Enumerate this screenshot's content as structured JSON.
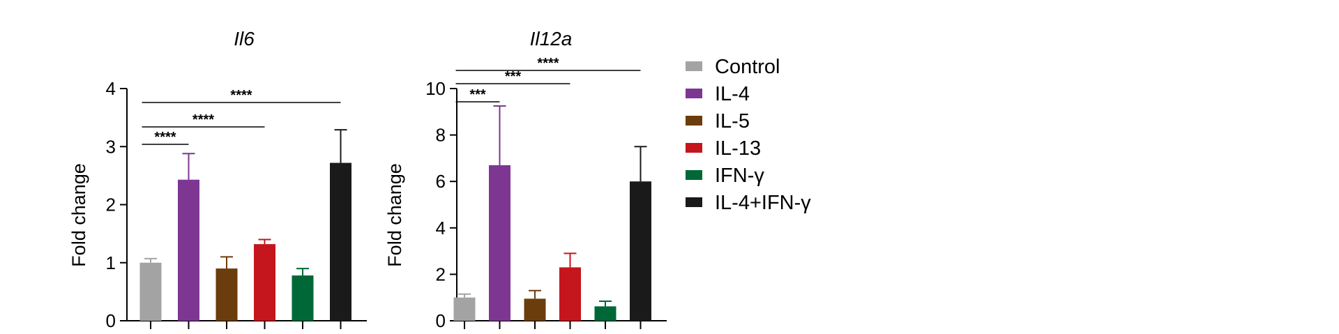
{
  "legend": {
    "placement": "right",
    "items": [
      {
        "label": "Control",
        "color": "#a3a3a3"
      },
      {
        "label": "IL-4",
        "color": "#7d3792"
      },
      {
        "label": "IL-5",
        "color": "#6b3d0c"
      },
      {
        "label": "IL-13",
        "color": "#c4161c"
      },
      {
        "label": "IFN-γ",
        "color": "#006837"
      },
      {
        "label": "IL-4+IFN-γ",
        "color": "#1a1a1a"
      }
    ]
  },
  "chart_data": [
    {
      "type": "bar",
      "title": "Il6",
      "ylabel": "Fold change",
      "ylim": [
        0,
        4
      ],
      "yticks": [
        0,
        1,
        2,
        3,
        4
      ],
      "categories": [
        "Control",
        "IL-4",
        "IL-5",
        "IL-13",
        "IFN-γ",
        "IL-4+IFN-γ"
      ],
      "values": [
        1.0,
        2.43,
        0.9,
        1.32,
        0.78,
        2.72
      ],
      "errors": [
        0.07,
        0.45,
        0.2,
        0.08,
        0.12,
        0.57
      ],
      "significance": [
        {
          "from": 0,
          "to": 1,
          "label": "****"
        },
        {
          "from": 0,
          "to": 3,
          "label": "****"
        },
        {
          "from": 0,
          "to": 5,
          "label": "****"
        }
      ]
    },
    {
      "type": "bar",
      "title": "Il12a",
      "ylabel": "Fold change",
      "ylim": [
        0,
        10
      ],
      "yticks": [
        0,
        2,
        4,
        6,
        8,
        10
      ],
      "categories": [
        "Control",
        "IL-4",
        "IL-5",
        "IL-13",
        "IFN-γ",
        "IL-4+IFN-γ"
      ],
      "values": [
        1.0,
        6.7,
        0.95,
        2.3,
        0.62,
        6.0
      ],
      "errors": [
        0.15,
        2.55,
        0.35,
        0.6,
        0.22,
        1.5
      ],
      "significance": [
        {
          "from": 0,
          "to": 1,
          "label": "***"
        },
        {
          "from": 0,
          "to": 3,
          "label": "***"
        },
        {
          "from": 0,
          "to": 5,
          "label": "****"
        }
      ]
    }
  ]
}
